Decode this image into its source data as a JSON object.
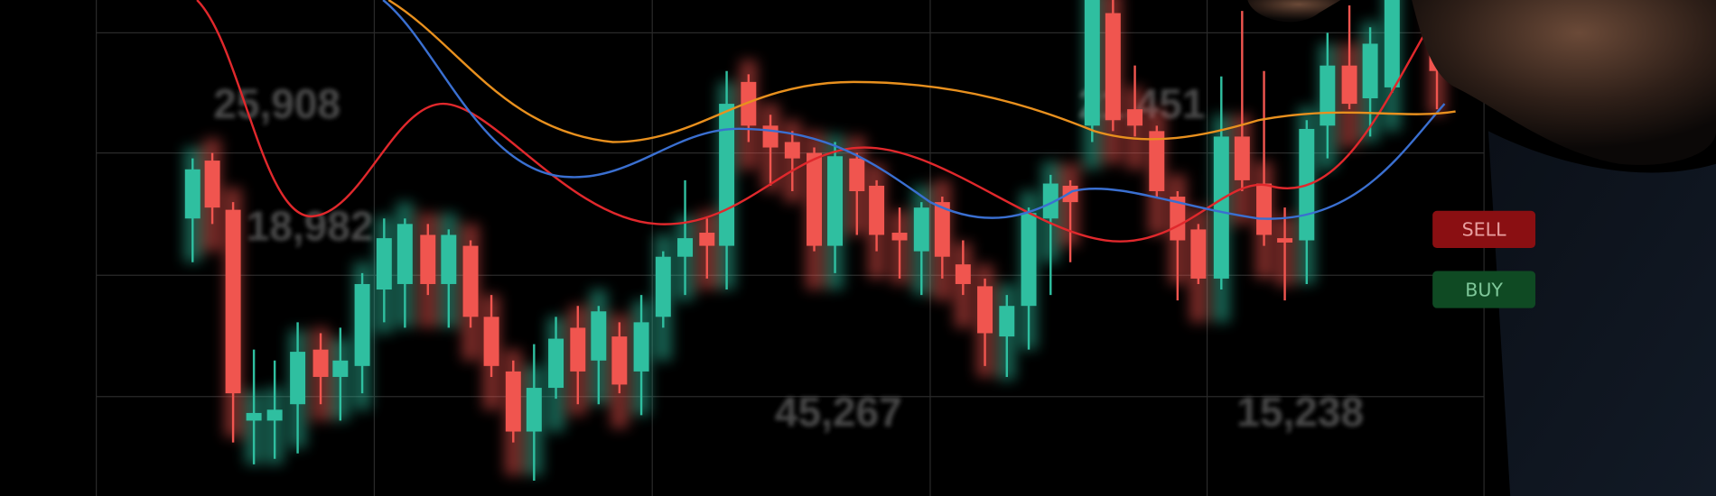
{
  "overlay_numbers": [
    "25,908",
    "18,982",
    "21,451",
    "45,267",
    "15,238"
  ],
  "buttons": {
    "sell": "SELL",
    "buy": "BUY"
  }
}
